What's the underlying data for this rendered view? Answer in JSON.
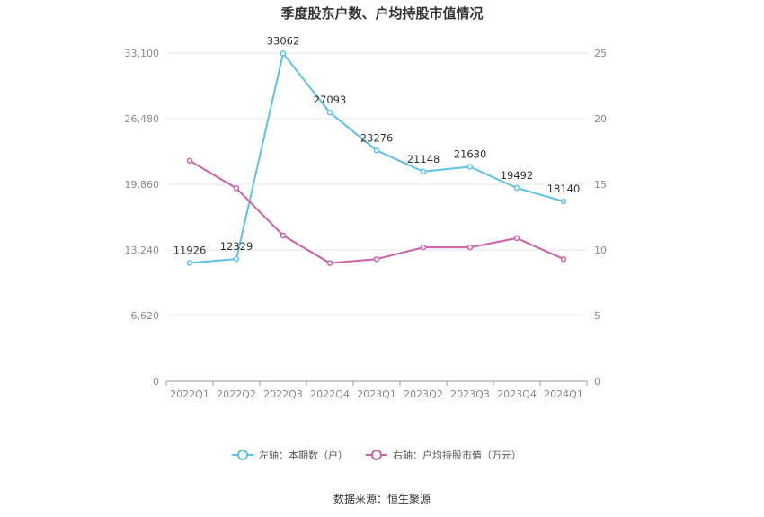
{
  "chart_data": {
    "type": "line",
    "title": "季度股东户数、户均持股市值情况",
    "categories": [
      "2022Q1",
      "2022Q2",
      "2022Q3",
      "2022Q4",
      "2023Q1",
      "2023Q2",
      "2023Q3",
      "2023Q4",
      "2024Q1"
    ],
    "left_axis": {
      "min": 0,
      "max": 33100,
      "ticks": [
        0,
        6620,
        13240,
        19860,
        26480,
        33100
      ],
      "tick_labels": [
        "0",
        "6,620",
        "13,240",
        "19,860",
        "26,480",
        "33,100"
      ]
    },
    "right_axis": {
      "min": 0,
      "max": 25,
      "ticks": [
        0,
        5,
        10,
        15,
        20,
        25
      ],
      "tick_labels": [
        "0",
        "5",
        "10",
        "15",
        "20",
        "25"
      ]
    },
    "series": [
      {
        "name": "左轴：本期数（户）",
        "axis": "left",
        "color": "#5bc0eb",
        "values": [
          11926,
          12329,
          33062,
          27093,
          23276,
          21148,
          21630,
          19492,
          18140
        ],
        "labels": [
          "11926",
          "12329",
          "33062",
          "27093",
          "23276",
          "21148",
          "21630",
          "19492",
          "18140"
        ]
      },
      {
        "name": "右轴：户均持股市值（万元）",
        "axis": "right",
        "color": "#cc5fa8",
        "values": [
          16.8,
          14.7,
          11.1,
          9.0,
          9.3,
          10.2,
          10.2,
          10.9,
          9.3
        ]
      }
    ],
    "grid": true,
    "legend_position": "bottom"
  },
  "footer": {
    "source": "数据来源：恒生聚源"
  }
}
